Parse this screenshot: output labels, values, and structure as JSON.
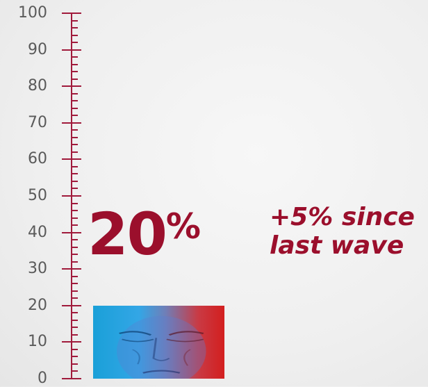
{
  "chart_data": {
    "type": "bar",
    "categories": [
      ""
    ],
    "values": [
      20
    ],
    "ylim": [
      0,
      100
    ],
    "ytick_labels": [
      "0",
      "10",
      "20",
      "30",
      "40",
      "50",
      "60",
      "70",
      "80",
      "90",
      "100"
    ],
    "value_label": "20",
    "value_unit": "%",
    "annotation_line1": "+5% since",
    "annotation_line2": "last wave",
    "colors": {
      "accent": "#9b0f2c",
      "ruler": "#a01a3b",
      "tick_text": "#5a5a5a",
      "bar_left": "#1aa0d8",
      "bar_right": "#d31f1f"
    }
  }
}
